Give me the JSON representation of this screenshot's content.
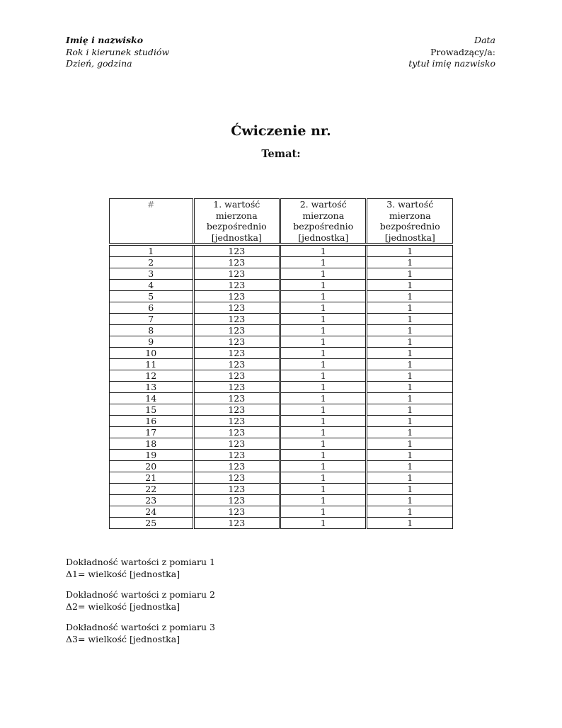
{
  "header_left": {
    "name": "Imię i nazwisko",
    "year": "Rok i kierunek studiów",
    "day": "Dzień, godzina"
  },
  "header_right": {
    "date": "Data",
    "instructor_label": "Prowadzący/a:",
    "instructor": "tytuł imię nazwisko"
  },
  "title": "Ćwiczenie nr.",
  "subtitle": "Temat:",
  "table": {
    "headers": [
      [
        "#"
      ],
      [
        "1. wartość",
        "mierzona",
        "bezpośrednio",
        "[jednostka]"
      ],
      [
        "2. wartość",
        "mierzona",
        "bezpośrednio",
        "[jednostka]"
      ],
      [
        "3. wartość",
        "mierzona",
        "bezpośrednio",
        "[jednostka]"
      ]
    ],
    "rows": [
      [
        "1",
        "123",
        "1",
        "1"
      ],
      [
        "2",
        "123",
        "1",
        "1"
      ],
      [
        "3",
        "123",
        "1",
        "1"
      ],
      [
        "4",
        "123",
        "1",
        "1"
      ],
      [
        "5",
        "123",
        "1",
        "1"
      ],
      [
        "6",
        "123",
        "1",
        "1"
      ],
      [
        "7",
        "123",
        "1",
        "1"
      ],
      [
        "8",
        "123",
        "1",
        "1"
      ],
      [
        "9",
        "123",
        "1",
        "1"
      ],
      [
        "10",
        "123",
        "1",
        "1"
      ],
      [
        "11",
        "123",
        "1",
        "1"
      ],
      [
        "12",
        "123",
        "1",
        "1"
      ],
      [
        "13",
        "123",
        "1",
        "1"
      ],
      [
        "14",
        "123",
        "1",
        "1"
      ],
      [
        "15",
        "123",
        "1",
        "1"
      ],
      [
        "16",
        "123",
        "1",
        "1"
      ],
      [
        "17",
        "123",
        "1",
        "1"
      ],
      [
        "18",
        "123",
        "1",
        "1"
      ],
      [
        "19",
        "123",
        "1",
        "1"
      ],
      [
        "20",
        "123",
        "1",
        "1"
      ],
      [
        "21",
        "123",
        "1",
        "1"
      ],
      [
        "22",
        "123",
        "1",
        "1"
      ],
      [
        "23",
        "123",
        "1",
        "1"
      ],
      [
        "24",
        "123",
        "1",
        "1"
      ],
      [
        "25",
        "123",
        "1",
        "1"
      ]
    ]
  },
  "notes": [
    {
      "label": "Dokładność wartości z pomiaru 1",
      "value": "Δ1= wielkość [jednostka]"
    },
    {
      "label": "Dokładność wartości z pomiaru 2",
      "value": "Δ2= wielkość [jednostka]"
    },
    {
      "label": "Dokładność wartości z pomiaru 3",
      "value": "Δ3= wielkość [jednostka]"
    }
  ]
}
